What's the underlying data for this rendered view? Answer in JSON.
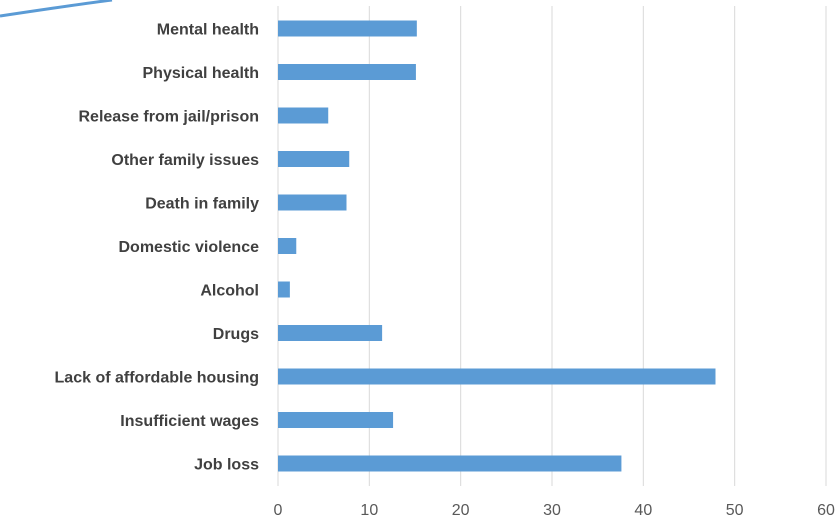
{
  "chart_data": {
    "type": "bar",
    "orientation": "horizontal",
    "categories": [
      "Mental health",
      "Physical health",
      "Release from jail/prison",
      "Other family issues",
      "Death in family",
      "Domestic violence",
      "Alcohol",
      "Drugs",
      "Lack of affordable housing",
      "Insufficient wages",
      "Job loss"
    ],
    "values": [
      15.2,
      15.1,
      5.5,
      7.8,
      7.5,
      2.0,
      1.3,
      11.4,
      47.9,
      12.6,
      37.6
    ],
    "xlim": [
      0,
      60
    ],
    "xticks": [
      "0",
      "10",
      "20",
      "30",
      "40",
      "50",
      "60"
    ],
    "grid": true,
    "bar_color": "#5b9bd5",
    "title": "",
    "xlabel": "",
    "ylabel": ""
  }
}
